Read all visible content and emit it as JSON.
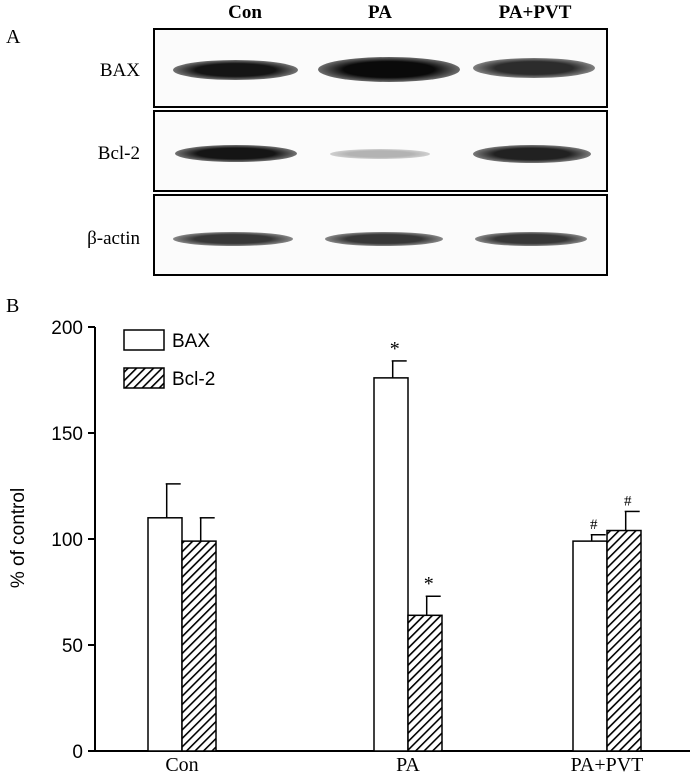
{
  "panel_a": {
    "label": "A",
    "lanes": [
      "Con",
      "PA",
      "PA+PVT"
    ],
    "rows": [
      {
        "label": "BAX",
        "band_intensity": [
          0.95,
          1.0,
          0.85
        ]
      },
      {
        "label": "Bcl-2",
        "band_intensity": [
          0.95,
          0.25,
          0.9
        ]
      },
      {
        "label": "β-actin",
        "band_intensity": [
          0.8,
          0.8,
          0.8
        ]
      }
    ]
  },
  "panel_b": {
    "label": "B"
  },
  "chart_data": {
    "type": "bar",
    "title": "",
    "xlabel": "",
    "ylabel": "% of control",
    "ylim": [
      0,
      200
    ],
    "yticks": [
      0,
      50,
      100,
      150,
      200
    ],
    "categories": [
      "Con",
      "PA",
      "PA+PVT"
    ],
    "legend_position": "top-left",
    "series": [
      {
        "name": "BAX",
        "values": [
          110,
          176,
          99
        ],
        "errors": [
          16,
          8,
          3
        ],
        "annotations": [
          "",
          "*",
          "#"
        ],
        "pattern": "none"
      },
      {
        "name": "Bcl-2",
        "values": [
          99,
          64,
          104
        ],
        "errors": [
          11,
          9,
          9
        ],
        "annotations": [
          "",
          "*",
          "#"
        ],
        "pattern": "hatch"
      }
    ],
    "grid": false
  }
}
